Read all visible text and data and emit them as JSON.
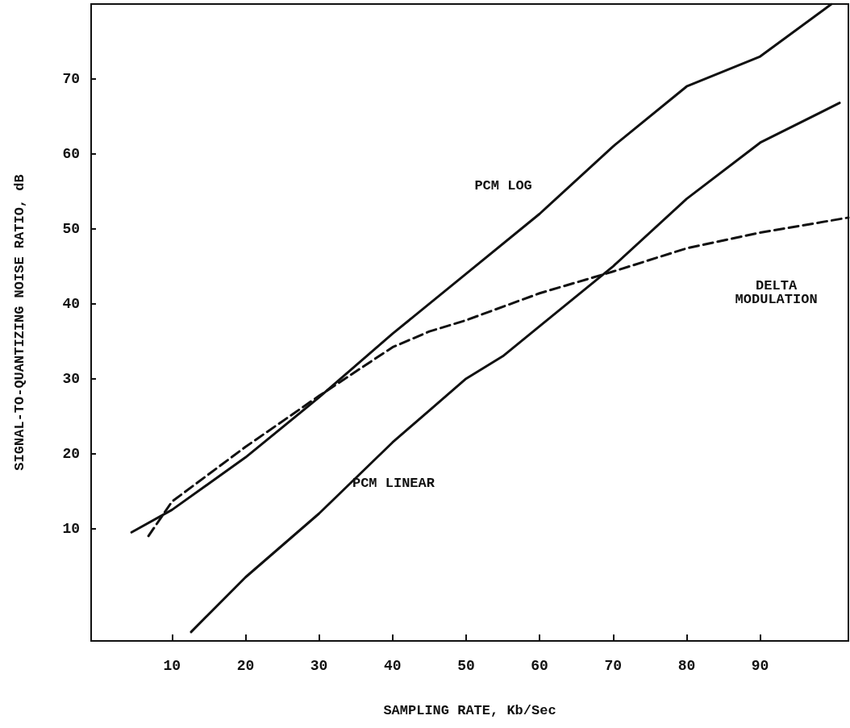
{
  "chart_data": {
    "type": "line",
    "xlabel": "SAMPLING RATE, Kb/Sec",
    "ylabel": "SIGNAL-TO-QUANTIZING NOISE RATIO, dB",
    "xlim": [
      -1,
      102
    ],
    "ylim": [
      -5,
      80
    ],
    "xticks": [
      10,
      20,
      30,
      40,
      50,
      60,
      70,
      80,
      90
    ],
    "yticks": [
      10,
      20,
      30,
      40,
      50,
      60,
      70
    ],
    "marker": "none",
    "grid": false,
    "series": [
      {
        "name": "PCM LOG",
        "color": "#111111",
        "line_style": "solid",
        "x": [
          4.5,
          10,
          20,
          30,
          40,
          50,
          60,
          70,
          80,
          90,
          99.7
        ],
        "values": [
          9.5,
          12.5,
          19.5,
          27.5,
          36,
          44,
          52,
          61,
          69,
          73,
          80
        ]
      },
      {
        "name": "PCM LINEAR",
        "color": "#111111",
        "line_style": "solid",
        "x": [
          12.6,
          20,
          30,
          40,
          50,
          55,
          60,
          70,
          80,
          90,
          100.8
        ],
        "values": [
          -3.8,
          3.5,
          12,
          21.5,
          30,
          33,
          37,
          45,
          54,
          61.5,
          66.8
        ]
      },
      {
        "name": "DELTA\nMODULATION",
        "color": "#111111",
        "line_style": "dashed",
        "x": [
          6.8,
          10,
          20,
          30,
          40,
          45,
          50,
          60,
          70,
          80,
          90,
          102
        ],
        "values": [
          9,
          13.6,
          20.9,
          27.7,
          34.2,
          36.3,
          37.8,
          41.4,
          44.3,
          47.4,
          49.5,
          51.5
        ]
      }
    ]
  }
}
